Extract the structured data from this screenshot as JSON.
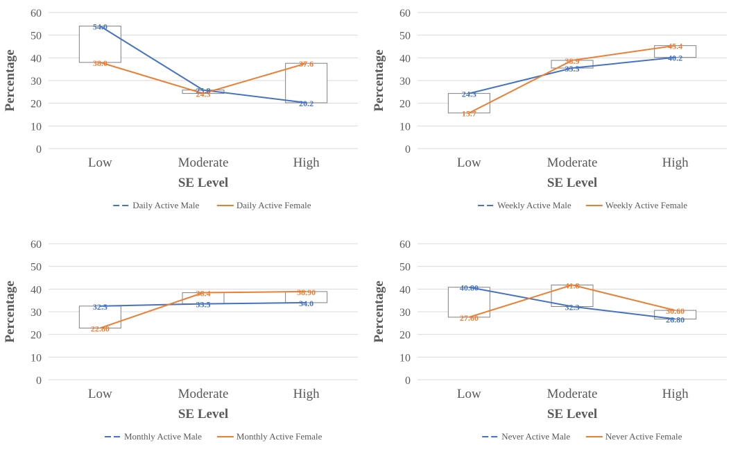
{
  "colors": {
    "male": "#4472c4",
    "female": "#ed7d31",
    "grid": "#d9d9d9",
    "box": "#7f7f7f",
    "text": "#595959"
  },
  "chart_data": [
    {
      "type": "line",
      "categories": [
        "Low",
        "Moderate",
        "High"
      ],
      "xlabel": "SE Level",
      "ylabel": "Percentage",
      "ylim": [
        0,
        60
      ],
      "yticks": [
        "0",
        "10",
        "20",
        "30",
        "40",
        "50",
        "60"
      ],
      "grid": true,
      "legend": "bottom",
      "series": [
        {
          "name": "Daily Active Male",
          "values": [
            54.0,
            25.8,
            20.2
          ],
          "labels": [
            "54.0",
            "25.8",
            "20.2"
          ]
        },
        {
          "name": "Daily Active Female",
          "values": [
            38.0,
            24.3,
            37.6
          ],
          "labels": [
            "38.0",
            "24.3",
            "37.6"
          ]
        }
      ]
    },
    {
      "type": "line",
      "categories": [
        "Low",
        "Moderate",
        "High"
      ],
      "xlabel": "SE Level",
      "ylabel": "Percentage",
      "ylim": [
        0,
        60
      ],
      "yticks": [
        "0",
        "10",
        "20",
        "30",
        "40",
        "50",
        "60"
      ],
      "grid": true,
      "legend": "bottom",
      "series": [
        {
          "name": "Weekly Active Male",
          "values": [
            24.3,
            35.5,
            40.2
          ],
          "labels": [
            "24.3",
            "35.5",
            "40.2"
          ]
        },
        {
          "name": "Weekly Active Female",
          "values": [
            15.7,
            38.9,
            45.4
          ],
          "labels": [
            "15.7",
            "38.9",
            "45.4"
          ]
        }
      ]
    },
    {
      "type": "line",
      "categories": [
        "Low",
        "Moderate",
        "High"
      ],
      "xlabel": "SE Level",
      "ylabel": "Percentage",
      "ylim": [
        0,
        60
      ],
      "yticks": [
        "0",
        "10",
        "20",
        "30",
        "40",
        "50",
        "60"
      ],
      "grid": true,
      "legend": "bottom",
      "series": [
        {
          "name": "Monthly Active Male",
          "values": [
            32.5,
            33.5,
            34.0
          ],
          "labels": [
            "32.5",
            "33.5",
            "34.0"
          ]
        },
        {
          "name": "Monthly Active Female",
          "values": [
            22.8,
            38.4,
            38.9
          ],
          "labels": [
            "22.80",
            "38.4",
            "38.90"
          ]
        }
      ]
    },
    {
      "type": "line",
      "categories": [
        "Low",
        "Moderate",
        "High"
      ],
      "xlabel": "SE Level",
      "ylabel": "Percentage",
      "ylim": [
        0,
        60
      ],
      "yticks": [
        "0",
        "10",
        "20",
        "30",
        "40",
        "50",
        "60"
      ],
      "grid": true,
      "legend": "bottom",
      "series": [
        {
          "name": "Never Active Male",
          "values": [
            40.8,
            32.3,
            26.8
          ],
          "labels": [
            "40.80",
            "32.3",
            "26.80"
          ]
        },
        {
          "name": "Never Active Female",
          "values": [
            27.6,
            41.8,
            30.6
          ],
          "labels": [
            "27.60",
            "41.8",
            "30.60"
          ]
        }
      ]
    }
  ]
}
